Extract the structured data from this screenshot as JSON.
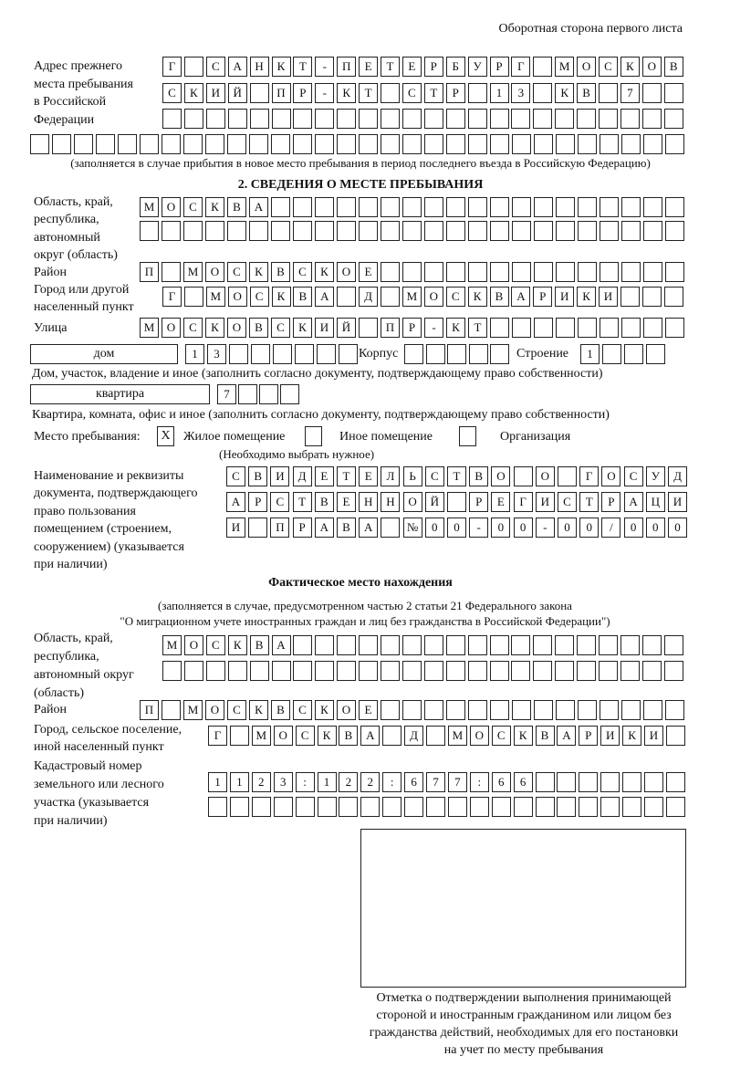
{
  "header": "Оборотная сторона первого листа",
  "prev_address": {
    "label": [
      "Адрес прежнего",
      "места пребывания",
      "в Российской",
      "Федерации"
    ],
    "rows": [
      [
        "Г",
        "",
        "С",
        "А",
        "Н",
        "К",
        "Т",
        "-",
        "П",
        "Е",
        "Т",
        "Е",
        "Р",
        "Б",
        "У",
        "Р",
        "Г",
        "",
        "М",
        "О",
        "С",
        "К",
        "О",
        "В"
      ],
      [
        "С",
        "К",
        "И",
        "Й",
        "",
        "П",
        "Р",
        "-",
        "К",
        "Т",
        "",
        "С",
        "Т",
        "Р",
        "",
        "1",
        "3",
        "",
        "К",
        "В",
        "",
        "7",
        "",
        ""
      ],
      [
        "",
        "",
        "",
        "",
        "",
        "",
        "",
        "",
        "",
        "",
        "",
        "",
        "",
        "",
        "",
        "",
        "",
        "",
        "",
        "",
        "",
        "",
        "",
        ""
      ],
      [
        "",
        "",
        "",
        "",
        "",
        "",
        "",
        "",
        "",
        "",
        "",
        "",
        "",
        "",
        "",
        "",
        "",
        "",
        "",
        "",
        "",
        "",
        "",
        "",
        "",
        "",
        "",
        "",
        "",
        ""
      ]
    ],
    "note": "(заполняется в случае прибытия в новое место пребывания в период последнего въезда в Российскую Федерацию)"
  },
  "section2": {
    "title": "2. СВЕДЕНИЯ О МЕСТЕ ПРЕБЫВАНИЯ",
    "region_label": [
      "Область, край,",
      "республика,",
      "автономный",
      "округ (область)"
    ],
    "region_rows": [
      [
        "М",
        "О",
        "С",
        "К",
        "В",
        "А",
        "",
        "",
        "",
        "",
        "",
        "",
        "",
        "",
        "",
        "",
        "",
        "",
        "",
        "",
        "",
        "",
        "",
        "",
        ""
      ],
      [
        "",
        "",
        "",
        "",
        "",
        "",
        "",
        "",
        "",
        "",
        "",
        "",
        "",
        "",
        "",
        "",
        "",
        "",
        "",
        "",
        "",
        "",
        "",
        "",
        ""
      ]
    ],
    "district_label": "Район",
    "district_row": [
      "П",
      "",
      "М",
      "О",
      "С",
      "К",
      "В",
      "С",
      "К",
      "О",
      "Е",
      "",
      "",
      "",
      "",
      "",
      "",
      "",
      "",
      "",
      "",
      "",
      "",
      "",
      ""
    ],
    "city_label": [
      "Город или другой",
      "населенный пункт"
    ],
    "city_row": [
      "Г",
      "",
      "М",
      "О",
      "С",
      "К",
      "В",
      "А",
      "",
      "Д",
      "",
      "М",
      "О",
      "С",
      "К",
      "В",
      "А",
      "Р",
      "И",
      "К",
      "И",
      "",
      "",
      ""
    ],
    "street_label": "Улица",
    "street_row": [
      "М",
      "О",
      "С",
      "К",
      "О",
      "В",
      "С",
      "К",
      "И",
      "Й",
      "",
      "П",
      "Р",
      "-",
      "К",
      "Т",
      "",
      "",
      "",
      "",
      "",
      "",
      "",
      "",
      ""
    ],
    "house_type": "дом",
    "house_cells": [
      "1",
      "3",
      "",
      "",
      "",
      "",
      "",
      ""
    ],
    "korpus_label": "Корпус",
    "korpus_cells": [
      "",
      "",
      "",
      "",
      ""
    ],
    "building_label": "Строение",
    "building_cells": [
      "1",
      "",
      "",
      ""
    ],
    "house_note": "Дом, участок, владение и иное (заполнить согласно документу, подтверждающему право собственности)",
    "apt_type": "квартира",
    "apt_cells": [
      "7",
      "",
      "",
      ""
    ],
    "apt_note": "Квартира, комната, офис и иное (заполнить согласно документу, подтверждающему право собственности)",
    "stay_label": "Место пребывания:",
    "options": [
      {
        "label": "Жилое помещение",
        "mark": "X"
      },
      {
        "label": "Иное помещение",
        "mark": ""
      },
      {
        "label": "Организация",
        "mark": ""
      }
    ],
    "options_note": "(Необходимо выбрать нужное)",
    "doc_label": [
      "Наименование и реквизиты",
      "документа, подтверждающего",
      "право пользования",
      "помещением (строением,",
      "сооружением) (указывается",
      "при наличии)"
    ],
    "doc_rows": [
      [
        "С",
        "В",
        "И",
        "Д",
        "Е",
        "Т",
        "Е",
        "Л",
        "Ь",
        "С",
        "Т",
        "В",
        "О",
        "",
        "О",
        "",
        "Г",
        "О",
        "С",
        "У",
        "Д"
      ],
      [
        "А",
        "Р",
        "С",
        "Т",
        "В",
        "Е",
        "Н",
        "Н",
        "О",
        "Й",
        "",
        "Р",
        "Е",
        "Г",
        "И",
        "С",
        "Т",
        "Р",
        "А",
        "Ц",
        "И"
      ],
      [
        "И",
        "",
        "П",
        "Р",
        "А",
        "В",
        "А",
        "",
        "№",
        "0",
        "0",
        "-",
        "0",
        "0",
        "-",
        "0",
        "0",
        "/",
        "0",
        "0",
        "0"
      ]
    ]
  },
  "actual": {
    "title": "Фактическое место нахождения",
    "note": [
      "(заполняется в случае, предусмотренном частью 2 статьи 21 Федерального закона",
      "\"О миграционном учете иностранных граждан и лиц без гражданства в Российской Федерации\")"
    ],
    "region_label": [
      "Область, край,",
      "республика,",
      "автономный округ",
      "(область)"
    ],
    "region_rows": [
      [
        "М",
        "О",
        "С",
        "К",
        "В",
        "А",
        "",
        "",
        "",
        "",
        "",
        "",
        "",
        "",
        "",
        "",
        "",
        "",
        "",
        "",
        "",
        "",
        "",
        ""
      ],
      [
        "",
        "",
        "",
        "",
        "",
        "",
        "",
        "",
        "",
        "",
        "",
        "",
        "",
        "",
        "",
        "",
        "",
        "",
        "",
        "",
        "",
        "",
        "",
        ""
      ]
    ],
    "district_label": "Район",
    "district_row": [
      "П",
      "",
      "М",
      "О",
      "С",
      "К",
      "В",
      "С",
      "К",
      "О",
      "Е",
      "",
      "",
      "",
      "",
      "",
      "",
      "",
      "",
      "",
      "",
      "",
      "",
      "",
      ""
    ],
    "city_label": [
      "Город, сельское поселение,",
      "иной населенный пункт"
    ],
    "city_row": [
      "Г",
      "",
      "М",
      "О",
      "С",
      "К",
      "В",
      "А",
      "",
      "Д",
      "",
      "М",
      "О",
      "С",
      "К",
      "В",
      "А",
      "Р",
      "И",
      "К",
      "И",
      ""
    ],
    "cadastre_label": [
      "Кадастровый номер",
      "земельного или лесного",
      "участка (указывается",
      "при наличии)"
    ],
    "cadastre_rows": [
      [
        "1",
        "1",
        "2",
        "3",
        ":",
        "1",
        "2",
        "2",
        ":",
        "6",
        "7",
        "7",
        ":",
        "6",
        "6",
        "",
        "",
        "",
        "",
        "",
        "",
        ""
      ],
      [
        "",
        "",
        "",
        "",
        "",
        "",
        "",
        "",
        "",
        "",
        "",
        "",
        "",
        "",
        "",
        "",
        "",
        "",
        "",
        "",
        "",
        ""
      ]
    ]
  },
  "confirmation": {
    "caption": [
      "Отметка о подтверждении выполнения принимающей",
      "стороной и иностранным гражданином или лицом без",
      "гражданства действий, необходимых для его постановки",
      "на учет по месту пребывания"
    ]
  }
}
